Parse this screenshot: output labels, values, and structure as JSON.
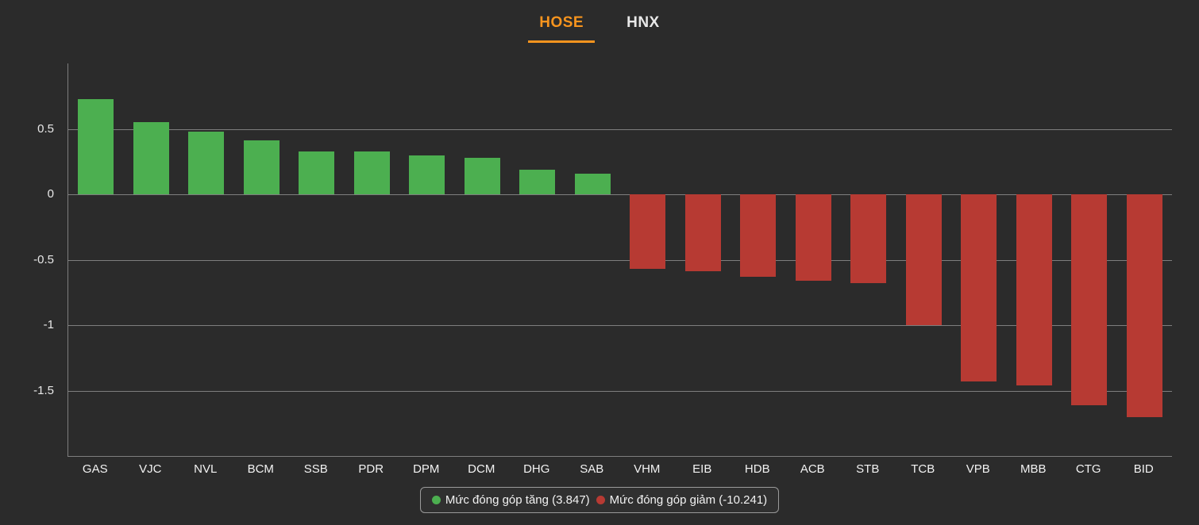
{
  "tabs": [
    {
      "label": "HOSE",
      "active": true
    },
    {
      "label": "HNX",
      "active": false
    }
  ],
  "legend": {
    "up_label": "Mức đóng góp tăng (3.847)",
    "down_label": "Mức đóng góp giảm (-10.241)"
  },
  "colors": {
    "background": "#2b2b2b",
    "positive": "#4caf50",
    "negative": "#b73a33",
    "accent": "#f7941e",
    "grid": "#7e7e7e",
    "text": "#e8e8e8"
  },
  "chart_data": {
    "type": "bar",
    "title": "",
    "xlabel": "",
    "ylabel": "",
    "categories": [
      "GAS",
      "VJC",
      "NVL",
      "BCM",
      "SSB",
      "PDR",
      "DPM",
      "DCM",
      "DHG",
      "SAB",
      "VHM",
      "EIB",
      "HDB",
      "ACB",
      "STB",
      "TCB",
      "VPB",
      "MBB",
      "CTG",
      "BID"
    ],
    "values": [
      0.73,
      0.55,
      0.48,
      0.41,
      0.33,
      0.33,
      0.3,
      0.28,
      0.19,
      0.16,
      -0.57,
      -0.59,
      -0.63,
      -0.66,
      -0.68,
      -1.0,
      -1.43,
      -1.46,
      -1.61,
      -1.7
    ],
    "ylim": [
      -2,
      1
    ],
    "yticks": [
      0.5,
      0,
      -0.5,
      -1,
      -1.5
    ],
    "grid": true,
    "legend_position": "bottom",
    "series_legend": [
      {
        "name": "Mức đóng góp tăng (3.847)",
        "color": "#4caf50"
      },
      {
        "name": "Mức đóng góp giảm (-10.241)",
        "color": "#b73a33"
      }
    ]
  }
}
